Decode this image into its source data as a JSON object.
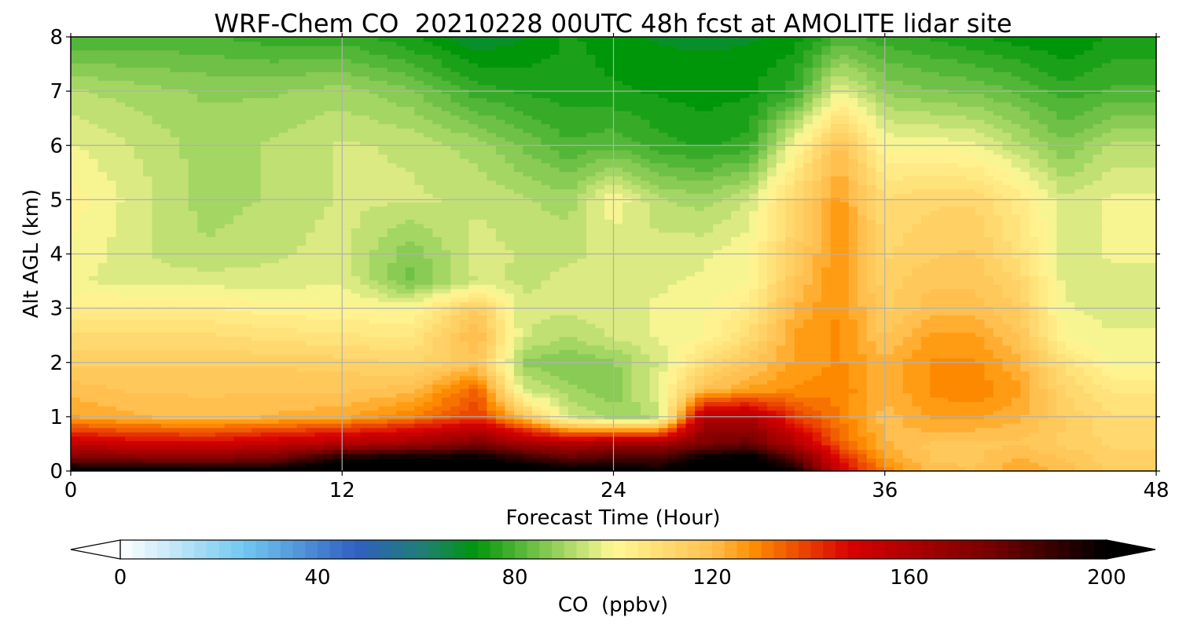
{
  "chart_data": {
    "type": "heatmap",
    "title": "WRF-Chem CO  20210228 00UTC 48h fcst at AMOLITE lidar site",
    "xlabel": "Forecast Time (Hour)",
    "ylabel": "Alt AGL (km)",
    "xlim": [
      0,
      48
    ],
    "ylim": [
      0,
      8
    ],
    "x_ticks": [
      "0",
      "12",
      "24",
      "36",
      "48"
    ],
    "y_ticks": [
      "0",
      "1",
      "2",
      "3",
      "4",
      "5",
      "6",
      "7",
      "8"
    ],
    "grid": true,
    "x": [
      0,
      3,
      6,
      9,
      12,
      15,
      18,
      20,
      22,
      24,
      26,
      28,
      30,
      32,
      34,
      36,
      38,
      40,
      42,
      44,
      46,
      48
    ],
    "y": [
      0,
      0.25,
      0.5,
      1,
      1.5,
      2,
      2.5,
      3,
      3.5,
      4,
      5,
      6,
      7,
      8
    ],
    "values": [
      [
        205,
        205,
        205,
        205,
        210,
        210,
        210,
        210,
        205,
        205,
        200,
        210,
        210,
        200,
        150,
        130,
        120,
        118,
        125,
        120,
        115,
        115
      ],
      [
        175,
        172,
        170,
        175,
        195,
        200,
        200,
        190,
        180,
        185,
        185,
        200,
        205,
        180,
        145,
        125,
        118,
        118,
        122,
        118,
        114,
        114
      ],
      [
        155,
        150,
        150,
        155,
        160,
        165,
        175,
        165,
        160,
        165,
        165,
        175,
        180,
        160,
        135,
        122,
        118,
        118,
        118,
        115,
        112,
        112
      ],
      [
        125,
        122,
        120,
        122,
        124,
        130,
        140,
        120,
        95,
        90,
        92,
        160,
        160,
        140,
        130,
        120,
        125,
        125,
        122,
        115,
        110,
        110
      ],
      [
        120,
        118,
        118,
        118,
        118,
        120,
        135,
        95,
        90,
        86,
        98,
        120,
        125,
        128,
        130,
        122,
        128,
        130,
        125,
        112,
        106,
        106
      ],
      [
        115,
        115,
        115,
        115,
        114,
        112,
        118,
        88,
        85,
        88,
        95,
        110,
        118,
        125,
        128,
        122,
        128,
        128,
        122,
        108,
        100,
        100
      ],
      [
        110,
        110,
        110,
        108,
        107,
        106,
        122,
        95,
        92,
        95,
        98,
        100,
        110,
        125,
        128,
        118,
        125,
        125,
        118,
        100,
        98,
        98
      ],
      [
        104,
        104,
        104,
        102,
        101,
        100,
        116,
        95,
        95,
        96,
        98,
        100,
        105,
        122,
        128,
        115,
        120,
        120,
        115,
        98,
        96,
        96
      ],
      [
        98,
        96,
        96,
        96,
        97,
        85,
        95,
        94,
        95,
        96,
        97,
        98,
        100,
        118,
        128,
        114,
        118,
        118,
        112,
        96,
        96,
        96
      ],
      [
        100,
        95,
        92,
        94,
        96,
        86,
        96,
        94,
        94,
        95,
        96,
        97,
        100,
        115,
        128,
        112,
        115,
        116,
        108,
        95,
        98,
        98
      ],
      [
        102,
        96,
        90,
        92,
        95,
        95,
        94,
        92,
        90,
        100,
        92,
        90,
        95,
        112,
        126,
        110,
        112,
        112,
        105,
        95,
        98,
        98
      ],
      [
        98,
        94,
        90,
        92,
        95,
        94,
        90,
        85,
        80,
        82,
        78,
        76,
        78,
        100,
        120,
        100,
        100,
        98,
        92,
        86,
        92,
        92
      ],
      [
        92,
        90,
        88,
        88,
        90,
        86,
        78,
        76,
        75,
        74,
        73,
        72,
        73,
        78,
        98,
        88,
        86,
        85,
        82,
        78,
        80,
        80
      ],
      [
        80,
        80,
        80,
        78,
        78,
        74,
        68,
        70,
        74,
        72,
        70,
        70,
        70,
        72,
        80,
        78,
        76,
        74,
        72,
        70,
        74,
        74
      ]
    ],
    "colorbar": {
      "label": "CO  (ppbv)",
      "ticks": [
        "0",
        "40",
        "80",
        "120",
        "160",
        "200"
      ],
      "range": [
        0,
        200
      ],
      "extend": "both",
      "stops": [
        {
          "v": 0,
          "c": "#ffffff"
        },
        {
          "v": 25,
          "c": "#72c8f0"
        },
        {
          "v": 48,
          "c": "#3060c0"
        },
        {
          "v": 62,
          "c": "#1f8070"
        },
        {
          "v": 72,
          "c": "#00960a"
        },
        {
          "v": 86,
          "c": "#80c850"
        },
        {
          "v": 100,
          "c": "#fff896"
        },
        {
          "v": 120,
          "c": "#ffc050"
        },
        {
          "v": 128,
          "c": "#ff9000"
        },
        {
          "v": 148,
          "c": "#d80000"
        },
        {
          "v": 176,
          "c": "#780000"
        },
        {
          "v": 200,
          "c": "#000000"
        }
      ]
    }
  }
}
